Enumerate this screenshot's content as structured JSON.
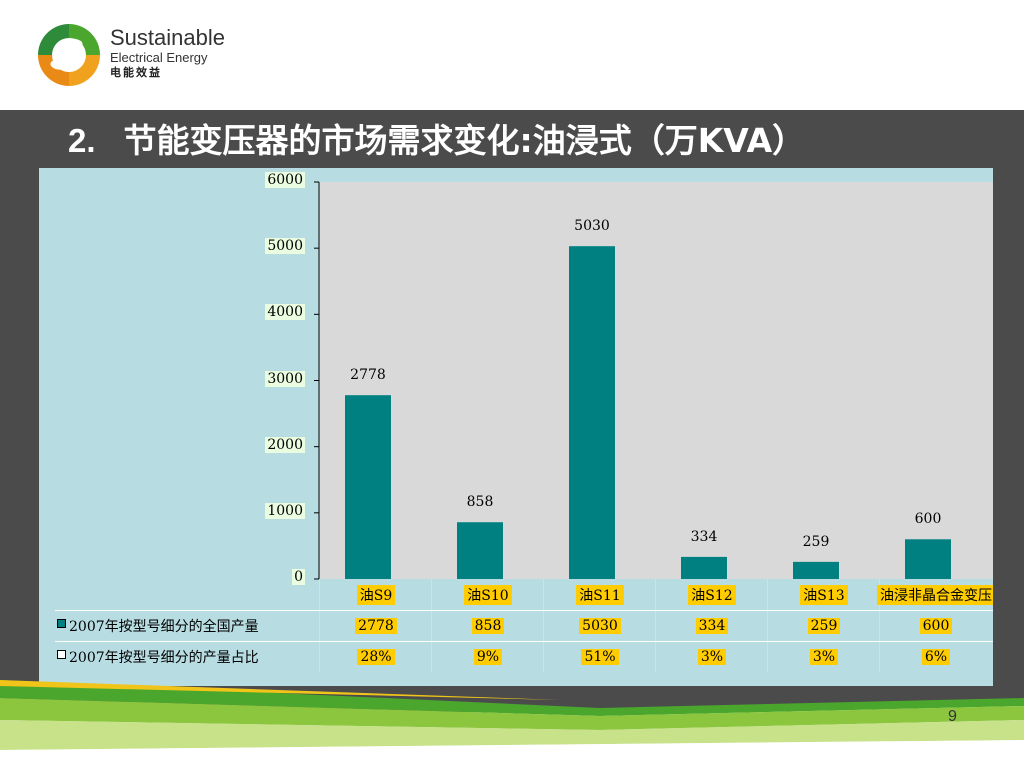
{
  "brand": {
    "line1": "Sustainable",
    "line2": "Electrical  Energy",
    "line3": "电能效益"
  },
  "slide": {
    "number_prefix": "2.",
    "title": "节能变压器的市场需求变化:油浸式（万KVA）",
    "page_number": "9"
  },
  "colors": {
    "bar": "#008080",
    "plot_background": "#d9d9d9",
    "panel_background": "#b7dde3",
    "band": "#4b4b4b",
    "label_highlight": "#ffcc00",
    "green": "#4aa62c",
    "yellow": "#f0c419"
  },
  "chart_data": {
    "type": "bar",
    "categories": [
      "油S9",
      "油S10",
      "油S11",
      "油S12",
      "油S13",
      "油浸非晶合金变压"
    ],
    "series": [
      {
        "name": "2007年按型号细分的全国产量",
        "values": [
          2778,
          858,
          5030,
          334,
          259,
          600
        ],
        "labels": [
          "2778",
          "858",
          "5030",
          "334",
          "259",
          "600"
        ]
      },
      {
        "name": "2007年按型号细分的产量占比",
        "values": [
          28,
          9,
          51,
          3,
          3,
          6
        ],
        "labels": [
          "28%",
          "9%",
          "51%",
          "3%",
          "3%",
          "6%"
        ]
      }
    ],
    "yticks": [
      "0",
      "1000",
      "2000",
      "3000",
      "4000",
      "5000",
      "6000"
    ],
    "ylim": [
      0,
      6000
    ],
    "grid": false,
    "legend": "data-table-below"
  }
}
